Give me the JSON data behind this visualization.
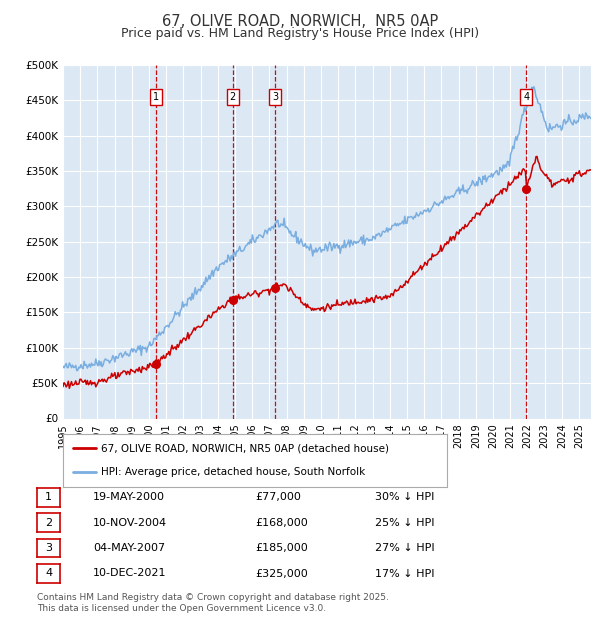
{
  "title": "67, OLIVE ROAD, NORWICH,  NR5 0AP",
  "subtitle": "Price paid vs. HM Land Registry's House Price Index (HPI)",
  "red_label": "67, OLIVE ROAD, NORWICH, NR5 0AP (detached house)",
  "blue_label": "HPI: Average price, detached house, South Norfolk",
  "footer": "Contains HM Land Registry data © Crown copyright and database right 2025.\nThis data is licensed under the Open Government Licence v3.0.",
  "transactions": [
    {
      "num": 1,
      "date": "19-MAY-2000",
      "price": 77000,
      "pct": "30%",
      "dir": "↓"
    },
    {
      "num": 2,
      "date": "10-NOV-2004",
      "price": 168000,
      "pct": "25%",
      "dir": "↓"
    },
    {
      "num": 3,
      "date": "04-MAY-2007",
      "price": 185000,
      "pct": "27%",
      "dir": "↓"
    },
    {
      "num": 4,
      "date": "10-DEC-2021",
      "price": 325000,
      "pct": "17%",
      "dir": "↓"
    }
  ],
  "transaction_dates_decimal": [
    2000.38,
    2004.86,
    2007.35,
    2021.94
  ],
  "transaction_prices": [
    77000,
    168000,
    185000,
    325000
  ],
  "ylim": [
    0,
    500000
  ],
  "yticks": [
    0,
    50000,
    100000,
    150000,
    200000,
    250000,
    300000,
    350000,
    400000,
    450000,
    500000
  ],
  "xlim_start": 1995.0,
  "xlim_end": 2025.7,
  "background_color": "#dce9f5",
  "grid_color": "#ffffff",
  "red_color": "#cc0000",
  "blue_color": "#7aade0",
  "vline_color": "#cc0000",
  "box_color": "#cc0000",
  "title_color": "#333333",
  "title_fontsize": 10.5,
  "subtitle_fontsize": 9,
  "xtick_years": [
    1995,
    1996,
    1997,
    1998,
    1999,
    2000,
    2001,
    2002,
    2003,
    2004,
    2005,
    2006,
    2007,
    2008,
    2009,
    2010,
    2011,
    2012,
    2013,
    2014,
    2015,
    2016,
    2017,
    2018,
    2019,
    2020,
    2021,
    2022,
    2023,
    2024,
    2025
  ]
}
